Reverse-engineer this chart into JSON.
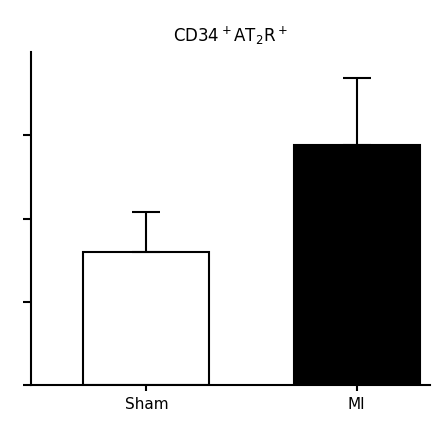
{
  "title": "CD34$^{+}$AT$_2$R$^{+}$",
  "categories": [
    "Sham",
    "MI"
  ],
  "values": [
    0.4,
    0.72
  ],
  "errors_up": [
    0.12,
    0.2
  ],
  "errors_down": [
    0.0,
    0.0
  ],
  "bar_colors": [
    "white",
    "black"
  ],
  "bar_edgecolors": [
    "black",
    "black"
  ],
  "ylim": [
    0,
    1.0
  ],
  "yticks": [
    0.0,
    0.25,
    0.5,
    0.75
  ],
  "background_color": "white",
  "bar_width": 0.6,
  "title_fontsize": 12,
  "tick_fontsize": 11,
  "linewidth": 1.5,
  "capsize": 10
}
